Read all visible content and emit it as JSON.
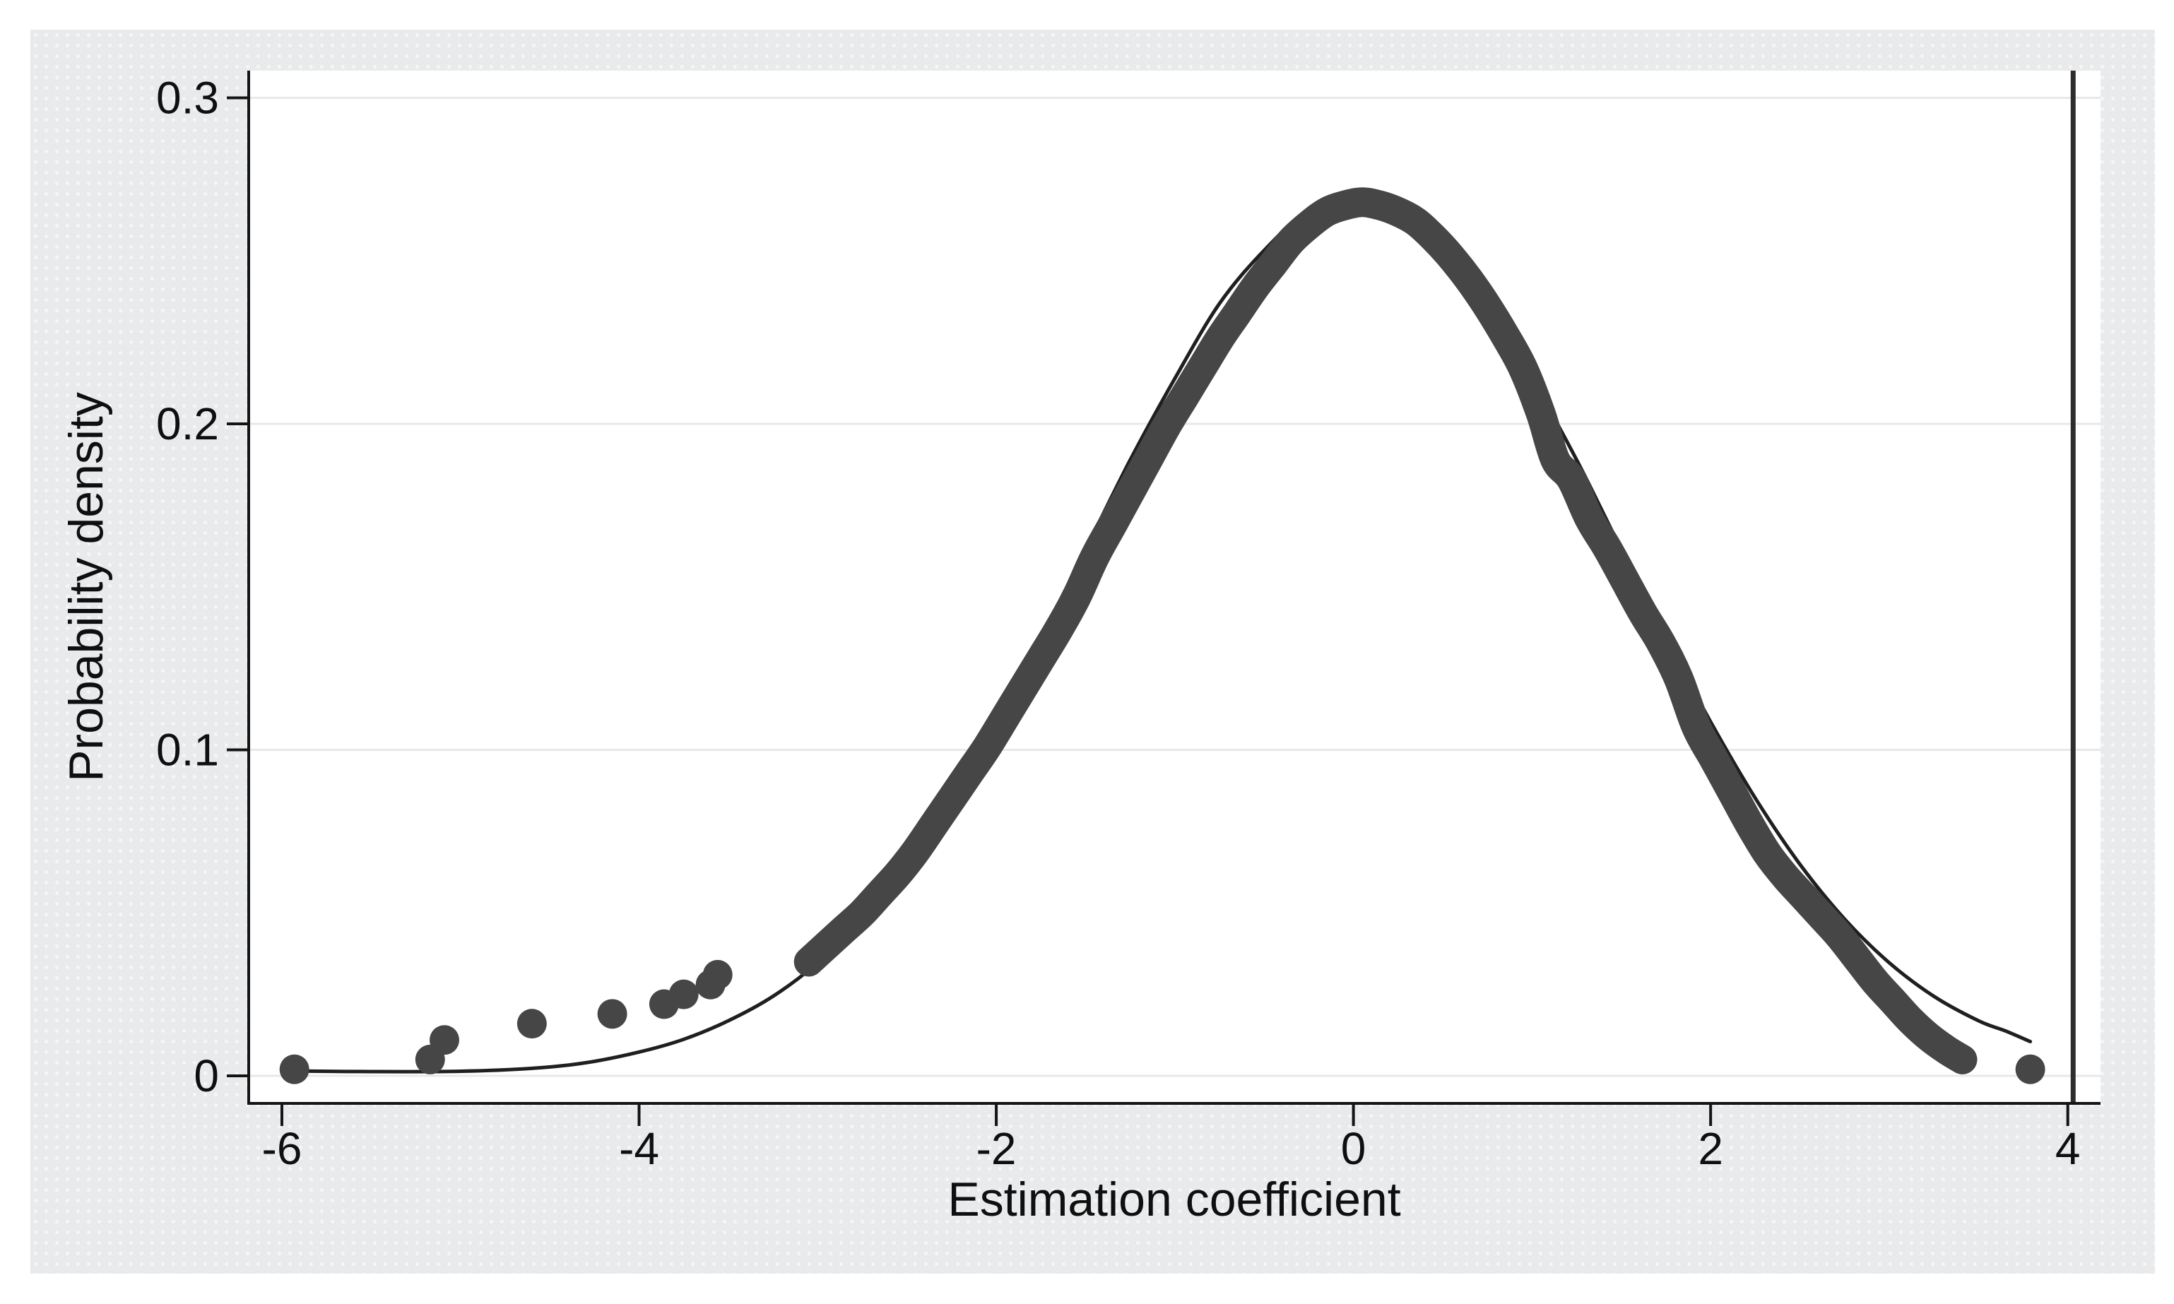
{
  "figure": {
    "outer_background": "#ffffff",
    "panel_background": "#e9eaec",
    "plot_background": "#ffffff",
    "grid_color": "#e8e8e8",
    "axis_color": "#141414",
    "text_color": "#0f0f0f",
    "kde_dot_color": "#464646",
    "normal_line_color": "#1f1f1f",
    "reference_line_color": "#2d2d2d"
  },
  "chart_data": {
    "type": "line",
    "title": "",
    "xlabel": "Estimation coefficient",
    "ylabel": "Probability density",
    "xlim": [
      -6.19,
      4.18
    ],
    "ylim": [
      -0.0085,
      0.308
    ],
    "grid": "horizontal-only",
    "legend": "none",
    "x_tick_values": [
      -6,
      -4,
      -2,
      0,
      2,
      4
    ],
    "x_tick_labels": [
      "-6",
      "-4",
      "-2",
      "0",
      "2",
      "4"
    ],
    "y_tick_values": [
      0,
      0.1,
      0.2,
      0.3
    ],
    "y_tick_labels": [
      "0",
      "0.1",
      "0.2",
      "0.3"
    ],
    "reference_line_x": 4.03,
    "series": [
      {
        "name": "kernel-density-estimate",
        "style": "thick-dot-band",
        "marker_diameter_px": 42,
        "peak": [
          0.05,
          0.268
        ],
        "points": [
          [
            -3.05,
            0.035
          ],
          [
            -2.95,
            0.04
          ],
          [
            -2.85,
            0.045
          ],
          [
            -2.75,
            0.05
          ],
          [
            -2.65,
            0.056
          ],
          [
            -2.55,
            0.062
          ],
          [
            -2.45,
            0.069
          ],
          [
            -2.35,
            0.077
          ],
          [
            -2.25,
            0.085
          ],
          [
            -2.15,
            0.093
          ],
          [
            -2.05,
            0.101
          ],
          [
            -1.95,
            0.11
          ],
          [
            -1.85,
            0.119
          ],
          [
            -1.75,
            0.128
          ],
          [
            -1.65,
            0.137
          ],
          [
            -1.55,
            0.147
          ],
          [
            -1.45,
            0.159
          ],
          [
            -1.35,
            0.169
          ],
          [
            -1.25,
            0.179
          ],
          [
            -1.15,
            0.189
          ],
          [
            -1.05,
            0.199
          ],
          [
            -0.95,
            0.208
          ],
          [
            -0.85,
            0.217
          ],
          [
            -0.75,
            0.226
          ],
          [
            -0.65,
            0.234
          ],
          [
            -0.55,
            0.242
          ],
          [
            -0.45,
            0.249
          ],
          [
            -0.35,
            0.256
          ],
          [
            -0.25,
            0.261
          ],
          [
            -0.15,
            0.265
          ],
          [
            -0.05,
            0.267
          ],
          [
            0.05,
            0.268
          ],
          [
            0.15,
            0.267
          ],
          [
            0.25,
            0.265
          ],
          [
            0.35,
            0.262
          ],
          [
            0.45,
            0.257
          ],
          [
            0.55,
            0.251
          ],
          [
            0.65,
            0.244
          ],
          [
            0.75,
            0.236
          ],
          [
            0.85,
            0.227
          ],
          [
            0.95,
            0.217
          ],
          [
            1.05,
            0.203
          ],
          [
            1.13,
            0.189
          ],
          [
            1.22,
            0.183
          ],
          [
            1.32,
            0.171
          ],
          [
            1.42,
            0.162
          ],
          [
            1.52,
            0.152
          ],
          [
            1.62,
            0.142
          ],
          [
            1.72,
            0.133
          ],
          [
            1.82,
            0.122
          ],
          [
            1.92,
            0.107
          ],
          [
            2.02,
            0.097
          ],
          [
            2.12,
            0.087
          ],
          [
            2.22,
            0.077
          ],
          [
            2.32,
            0.068
          ],
          [
            2.42,
            0.061
          ],
          [
            2.52,
            0.055
          ],
          [
            2.62,
            0.049
          ],
          [
            2.72,
            0.043
          ],
          [
            2.82,
            0.036
          ],
          [
            2.92,
            0.029
          ],
          [
            3.02,
            0.023
          ],
          [
            3.12,
            0.017
          ],
          [
            3.22,
            0.012
          ],
          [
            3.32,
            0.008
          ],
          [
            3.41,
            0.005
          ]
        ]
      },
      {
        "name": "kde-outlier-dots",
        "style": "scatter",
        "marker_diameter_px": 42,
        "points": [
          [
            -5.93,
            0.002
          ],
          [
            -5.17,
            0.005
          ],
          [
            -5.09,
            0.011
          ],
          [
            -4.6,
            0.016
          ],
          [
            -4.15,
            0.019
          ],
          [
            -3.86,
            0.022
          ],
          [
            -3.75,
            0.025
          ],
          [
            -3.6,
            0.028
          ],
          [
            -3.56,
            0.031
          ],
          [
            3.79,
            0.002
          ]
        ]
      },
      {
        "name": "normal-density-overlay",
        "style": "thin-line",
        "mu": 0,
        "sigma": 1.49,
        "points": [
          [
            -5.93,
            0.0015
          ],
          [
            -5.5,
            0.0013
          ],
          [
            -5.0,
            0.0014
          ],
          [
            -4.6,
            0.0023
          ],
          [
            -4.3,
            0.004
          ],
          [
            -4.0,
            0.0073
          ],
          [
            -3.75,
            0.0112
          ],
          [
            -3.5,
            0.0169
          ],
          [
            -3.25,
            0.0244
          ],
          [
            -3.0,
            0.0347
          ],
          [
            -2.75,
            0.0481
          ],
          [
            -2.5,
            0.0649
          ],
          [
            -2.25,
            0.0852
          ],
          [
            -2.0,
            0.1086
          ],
          [
            -1.75,
            0.1343
          ],
          [
            -1.5,
            0.1614
          ],
          [
            -1.25,
            0.1889
          ],
          [
            -1.0,
            0.2139
          ],
          [
            -0.75,
            0.2369
          ],
          [
            -0.5,
            0.2532
          ],
          [
            -0.25,
            0.2654
          ],
          [
            0,
            0.268
          ],
          [
            0.25,
            0.2654
          ],
          [
            0.5,
            0.2532
          ],
          [
            0.75,
            0.2369
          ],
          [
            1.0,
            0.2139
          ],
          [
            1.25,
            0.1889
          ],
          [
            1.5,
            0.1614
          ],
          [
            1.75,
            0.1343
          ],
          [
            2.0,
            0.1086
          ],
          [
            2.25,
            0.0852
          ],
          [
            2.5,
            0.0649
          ],
          [
            2.75,
            0.0481
          ],
          [
            3.0,
            0.0347
          ],
          [
            3.25,
            0.0244
          ],
          [
            3.5,
            0.0169
          ],
          [
            3.65,
            0.0138
          ],
          [
            3.79,
            0.0105
          ]
        ]
      }
    ]
  }
}
